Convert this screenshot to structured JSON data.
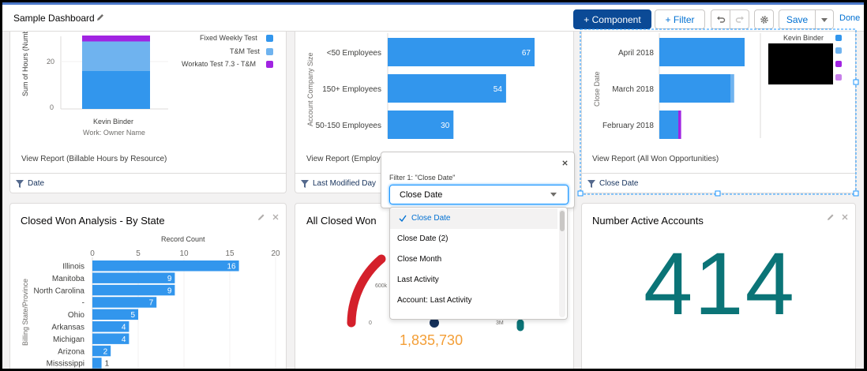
{
  "header": {
    "title": "Sample Dashboard",
    "component_label": "+ Component",
    "filter_label": "+ Filter",
    "save_label": "Save",
    "done_label": "Done"
  },
  "colors": {
    "accent": "#0070d2",
    "bar_blue": "#3296ed",
    "bar_light": "#6fb3ef",
    "purple": "#a124e2",
    "teal": "#0b7477",
    "orange": "#f39e36",
    "gauge_red": "#d4202b"
  },
  "card1": {
    "y_axis_label": "Sum of Hours (Numb",
    "ticks": [
      "20",
      "0"
    ],
    "category": "Kevin Binder",
    "axis_title": "Work: Owner Name",
    "legend": [
      "Fixed Weekly Test",
      "T&M Test",
      "Workato Test 7.3 - T&M"
    ],
    "view_report": "View Report (Billable Hours by Resource)",
    "filter": "Date"
  },
  "card2": {
    "y_axis_label": "Account Company Size",
    "view_report": "View Report (Employee",
    "filter": "Last Modified Day"
  },
  "card3": {
    "y_axis_label": "Close Date",
    "legend": "Kevin Binder",
    "view_report": "View Report (All Won Opportunities)",
    "filter": "Close Date"
  },
  "card4": {
    "title": "Closed Won Analysis - By State",
    "x_axis_label": "Record Count",
    "y_axis_label": "Billing State/Province"
  },
  "card5": {
    "title": "All Closed Won",
    "gauge_value": "1,835,730",
    "gauge_labels": [
      "600k",
      "0",
      "3M"
    ]
  },
  "card6": {
    "title": "Number Active Accounts",
    "metric": "414"
  },
  "filter_popup": {
    "label": "Filter 1: \"Close Date\"",
    "selected": "Close Date",
    "options": [
      "Close Date",
      "Close Date (2)",
      "Close Month",
      "Last Activity",
      "Account: Last Activity"
    ]
  },
  "chart_data": [
    {
      "type": "bar",
      "orientation": "vertical-stacked",
      "categories": [
        "Kevin Binder"
      ],
      "series": [
        {
          "name": "Fixed Weekly Test",
          "values": [
            16
          ]
        },
        {
          "name": "T&M Test",
          "values": [
            12.5
          ]
        },
        {
          "name": "Workato Test 7.3 - T&M",
          "values": [
            2.5
          ]
        }
      ],
      "ylabel": "Sum of Hours (Numb",
      "xlabel": "Work: Owner Name",
      "yticks": [
        0,
        20
      ],
      "ylim": [
        0,
        31
      ]
    },
    {
      "type": "bar",
      "orientation": "horizontal",
      "categories": [
        "<50 Employees",
        "150+ Employees",
        "50-150 Employees"
      ],
      "values": [
        67,
        54,
        30
      ],
      "ylabel": "Account Company Size",
      "xlim": [
        0,
        70
      ]
    },
    {
      "type": "bar",
      "orientation": "horizontal-stacked",
      "categories": [
        "April 2018",
        "March 2018",
        "February 2018"
      ],
      "series": [
        {
          "name": "Kevin Binder",
          "values": [
            9,
            7.5,
            2
          ]
        },
        {
          "name": "",
          "values": [
            0,
            0.4,
            0
          ]
        },
        {
          "name": "",
          "values": [
            0,
            0,
            0.3
          ]
        }
      ],
      "ylabel": "Close Date",
      "xlim": [
        0,
        10
      ]
    },
    {
      "type": "bar",
      "orientation": "horizontal",
      "title": "Closed Won Analysis - By State",
      "categories": [
        "Illinois",
        "Manitoba",
        "North Carolina",
        "-",
        "Ohio",
        "Arkansas",
        "Michigan",
        "Arizona",
        "Mississippi"
      ],
      "values": [
        16,
        9,
        9,
        7,
        5,
        4,
        4,
        2,
        1
      ],
      "xlabel": "Record Count",
      "ylabel": "Billing State/Province",
      "xticks": [
        0,
        5,
        10,
        15,
        20
      ],
      "xlim": [
        0,
        20
      ]
    }
  ]
}
